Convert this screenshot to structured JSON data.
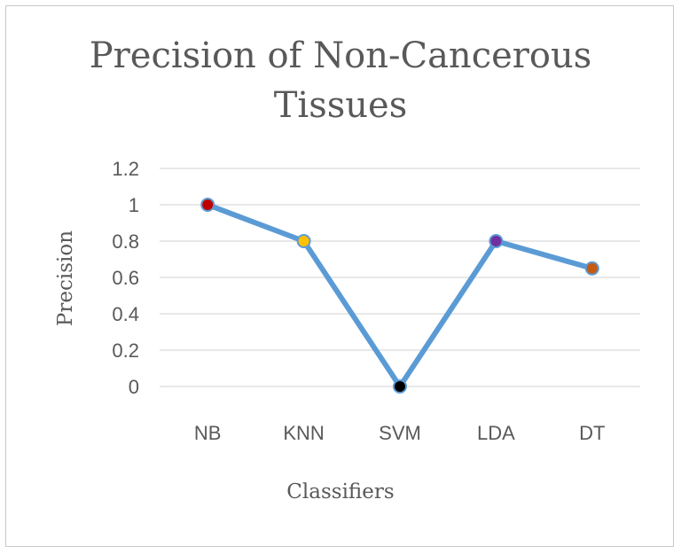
{
  "chart_data": {
    "type": "line",
    "title_lines": [
      "Precision of Non-Cancerous",
      "Tissues"
    ],
    "xlabel": "Classifiers",
    "ylabel": "Precision",
    "categories": [
      "NB",
      "KNN",
      "SVM",
      "LDA",
      "DT"
    ],
    "series": [
      {
        "values": [
          1.0,
          0.8,
          0.0,
          0.8,
          0.65
        ],
        "line_color": "#5b9bd5",
        "marker_colors": [
          "#c00000",
          "#ffc000",
          "#000000",
          "#7030a0",
          "#c55a11"
        ]
      }
    ],
    "ylim": [
      0,
      1.2
    ],
    "yticks": [
      "0",
      "0.2",
      "0.4",
      "0.6",
      "0.8",
      "1",
      "1.2"
    ],
    "grid": true,
    "legend": "none"
  }
}
